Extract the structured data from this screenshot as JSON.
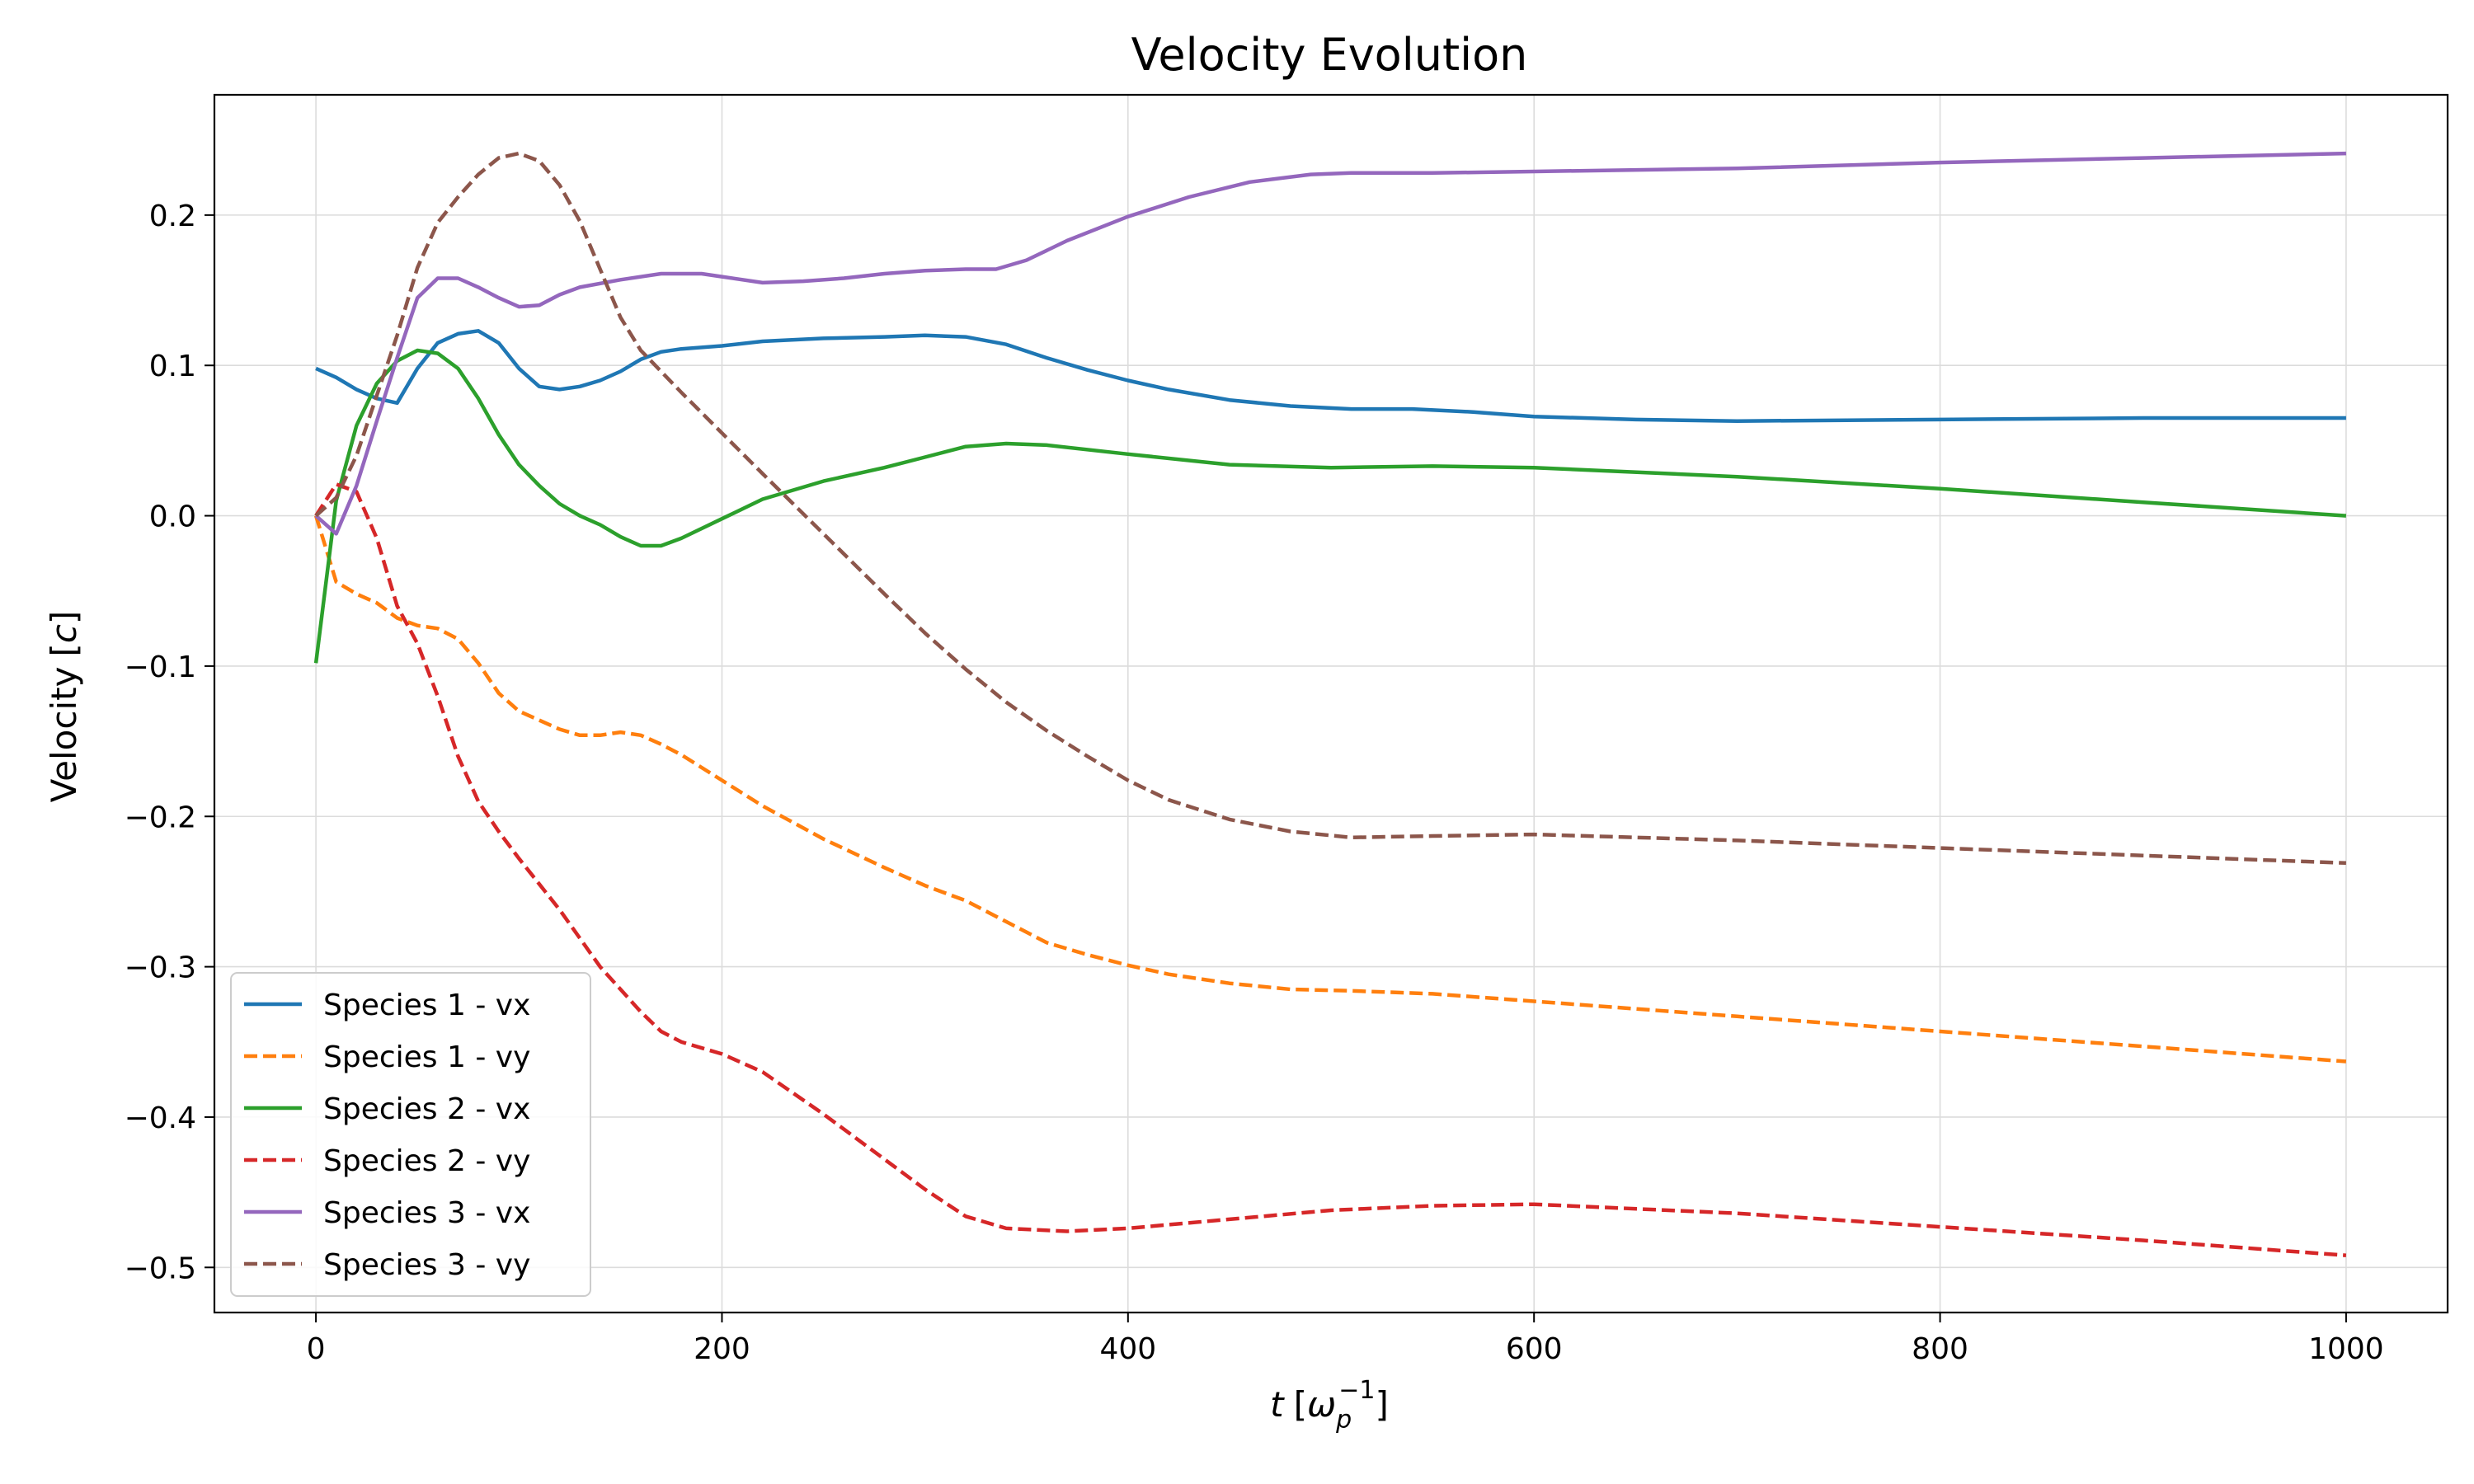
{
  "chart_data": {
    "type": "line",
    "title": "Velocity Evolution",
    "xlabel": {
      "main": "t",
      "bracket_open": "[",
      "omega": "ω",
      "sub": "p",
      "sup": "−1",
      "bracket_close": "]"
    },
    "ylabel": {
      "main": "Velocity",
      "bracket_open": "[",
      "unit": "c",
      "bracket_close": "]"
    },
    "xlim": [
      -50,
      1050
    ],
    "ylim": [
      -0.53,
      0.28
    ],
    "xticks": [
      0,
      200,
      400,
      600,
      800,
      1000
    ],
    "xtick_labels": [
      "0",
      "200",
      "400",
      "600",
      "800",
      "1000"
    ],
    "yticks": [
      -0.5,
      -0.4,
      -0.3,
      -0.2,
      -0.1,
      0.0,
      0.1,
      0.2
    ],
    "ytick_labels": [
      "−0.5",
      "−0.4",
      "−0.3",
      "−0.2",
      "−0.1",
      "0.0",
      "0.1",
      "0.2"
    ],
    "grid": true,
    "legend_position": "lower-left",
    "series": [
      {
        "name": "Species 1 - vx",
        "color": "#1f77b4",
        "dash": "solid",
        "points": [
          [
            0,
            0.098
          ],
          [
            10,
            0.092
          ],
          [
            20,
            0.084
          ],
          [
            30,
            0.078
          ],
          [
            40,
            0.075
          ],
          [
            50,
            0.098
          ],
          [
            60,
            0.115
          ],
          [
            70,
            0.121
          ],
          [
            80,
            0.123
          ],
          [
            90,
            0.115
          ],
          [
            100,
            0.098
          ],
          [
            110,
            0.086
          ],
          [
            120,
            0.084
          ],
          [
            130,
            0.086
          ],
          [
            140,
            0.09
          ],
          [
            150,
            0.096
          ],
          [
            160,
            0.104
          ],
          [
            170,
            0.109
          ],
          [
            180,
            0.111
          ],
          [
            200,
            0.113
          ],
          [
            220,
            0.116
          ],
          [
            250,
            0.118
          ],
          [
            280,
            0.119
          ],
          [
            300,
            0.12
          ],
          [
            320,
            0.119
          ],
          [
            340,
            0.114
          ],
          [
            360,
            0.105
          ],
          [
            380,
            0.097
          ],
          [
            400,
            0.09
          ],
          [
            420,
            0.084
          ],
          [
            450,
            0.077
          ],
          [
            480,
            0.073
          ],
          [
            510,
            0.071
          ],
          [
            540,
            0.071
          ],
          [
            570,
            0.069
          ],
          [
            600,
            0.066
          ],
          [
            650,
            0.064
          ],
          [
            700,
            0.063
          ],
          [
            800,
            0.064
          ],
          [
            900,
            0.065
          ],
          [
            1000,
            0.065
          ]
        ]
      },
      {
        "name": "Species 1 - vy",
        "color": "#ff7f0e",
        "dash": "dashed",
        "points": [
          [
            0,
            0.0
          ],
          [
            10,
            -0.044
          ],
          [
            20,
            -0.052
          ],
          [
            30,
            -0.058
          ],
          [
            40,
            -0.068
          ],
          [
            50,
            -0.073
          ],
          [
            60,
            -0.075
          ],
          [
            70,
            -0.082
          ],
          [
            80,
            -0.098
          ],
          [
            90,
            -0.118
          ],
          [
            100,
            -0.13
          ],
          [
            110,
            -0.136
          ],
          [
            120,
            -0.142
          ],
          [
            130,
            -0.146
          ],
          [
            140,
            -0.146
          ],
          [
            150,
            -0.144
          ],
          [
            160,
            -0.146
          ],
          [
            170,
            -0.152
          ],
          [
            180,
            -0.159
          ],
          [
            200,
            -0.176
          ],
          [
            220,
            -0.193
          ],
          [
            250,
            -0.215
          ],
          [
            280,
            -0.234
          ],
          [
            300,
            -0.246
          ],
          [
            320,
            -0.256
          ],
          [
            340,
            -0.27
          ],
          [
            360,
            -0.284
          ],
          [
            380,
            -0.292
          ],
          [
            400,
            -0.299
          ],
          [
            420,
            -0.305
          ],
          [
            450,
            -0.311
          ],
          [
            480,
            -0.315
          ],
          [
            510,
            -0.316
          ],
          [
            550,
            -0.318
          ],
          [
            600,
            -0.323
          ],
          [
            700,
            -0.333
          ],
          [
            800,
            -0.343
          ],
          [
            900,
            -0.353
          ],
          [
            1000,
            -0.363
          ]
        ]
      },
      {
        "name": "Species 2 - vx",
        "color": "#2ca02c",
        "dash": "solid",
        "points": [
          [
            0,
            -0.098
          ],
          [
            10,
            0.01
          ],
          [
            20,
            0.06
          ],
          [
            30,
            0.088
          ],
          [
            40,
            0.103
          ],
          [
            50,
            0.11
          ],
          [
            60,
            0.108
          ],
          [
            70,
            0.098
          ],
          [
            80,
            0.078
          ],
          [
            90,
            0.054
          ],
          [
            100,
            0.034
          ],
          [
            110,
            0.02
          ],
          [
            120,
            0.008
          ],
          [
            130,
            0.0
          ],
          [
            140,
            -0.006
          ],
          [
            150,
            -0.014
          ],
          [
            160,
            -0.02
          ],
          [
            170,
            -0.02
          ],
          [
            180,
            -0.015
          ],
          [
            200,
            -0.002
          ],
          [
            220,
            0.011
          ],
          [
            250,
            0.023
          ],
          [
            280,
            0.032
          ],
          [
            300,
            0.039
          ],
          [
            320,
            0.046
          ],
          [
            340,
            0.048
          ],
          [
            360,
            0.047
          ],
          [
            400,
            0.041
          ],
          [
            450,
            0.034
          ],
          [
            500,
            0.032
          ],
          [
            550,
            0.033
          ],
          [
            600,
            0.032
          ],
          [
            700,
            0.026
          ],
          [
            800,
            0.018
          ],
          [
            900,
            0.009
          ],
          [
            1000,
            0.0
          ]
        ]
      },
      {
        "name": "Species 2 - vy",
        "color": "#d62728",
        "dash": "dashed",
        "points": [
          [
            0,
            0.0
          ],
          [
            10,
            0.021
          ],
          [
            20,
            0.016
          ],
          [
            30,
            -0.015
          ],
          [
            40,
            -0.06
          ],
          [
            50,
            -0.085
          ],
          [
            60,
            -0.12
          ],
          [
            70,
            -0.16
          ],
          [
            80,
            -0.19
          ],
          [
            90,
            -0.21
          ],
          [
            100,
            -0.228
          ],
          [
            120,
            -0.262
          ],
          [
            140,
            -0.3
          ],
          [
            160,
            -0.33
          ],
          [
            170,
            -0.343
          ],
          [
            180,
            -0.35
          ],
          [
            200,
            -0.358
          ],
          [
            220,
            -0.37
          ],
          [
            250,
            -0.398
          ],
          [
            280,
            -0.428
          ],
          [
            300,
            -0.448
          ],
          [
            320,
            -0.466
          ],
          [
            340,
            -0.474
          ],
          [
            370,
            -0.476
          ],
          [
            400,
            -0.474
          ],
          [
            450,
            -0.468
          ],
          [
            500,
            -0.462
          ],
          [
            550,
            -0.459
          ],
          [
            600,
            -0.458
          ],
          [
            700,
            -0.464
          ],
          [
            800,
            -0.473
          ],
          [
            900,
            -0.482
          ],
          [
            1000,
            -0.492
          ]
        ]
      },
      {
        "name": "Species 3 - vx",
        "color": "#9467bd",
        "dash": "solid",
        "points": [
          [
            0,
            0.0
          ],
          [
            10,
            -0.012
          ],
          [
            20,
            0.02
          ],
          [
            30,
            0.063
          ],
          [
            40,
            0.105
          ],
          [
            50,
            0.145
          ],
          [
            60,
            0.158
          ],
          [
            70,
            0.158
          ],
          [
            80,
            0.152
          ],
          [
            90,
            0.145
          ],
          [
            100,
            0.139
          ],
          [
            110,
            0.14
          ],
          [
            120,
            0.147
          ],
          [
            130,
            0.152
          ],
          [
            150,
            0.157
          ],
          [
            170,
            0.161
          ],
          [
            190,
            0.161
          ],
          [
            200,
            0.159
          ],
          [
            220,
            0.155
          ],
          [
            240,
            0.156
          ],
          [
            260,
            0.158
          ],
          [
            280,
            0.161
          ],
          [
            300,
            0.163
          ],
          [
            320,
            0.164
          ],
          [
            335,
            0.164
          ],
          [
            350,
            0.17
          ],
          [
            370,
            0.183
          ],
          [
            400,
            0.199
          ],
          [
            430,
            0.212
          ],
          [
            460,
            0.222
          ],
          [
            490,
            0.227
          ],
          [
            510,
            0.228
          ],
          [
            550,
            0.228
          ],
          [
            600,
            0.229
          ],
          [
            700,
            0.231
          ],
          [
            800,
            0.235
          ],
          [
            900,
            0.238
          ],
          [
            1000,
            0.241
          ]
        ]
      },
      {
        "name": "Species 3 - vy",
        "color": "#8c564b",
        "dash": "dashed",
        "points": [
          [
            0,
            0.0
          ],
          [
            10,
            0.012
          ],
          [
            20,
            0.04
          ],
          [
            30,
            0.08
          ],
          [
            40,
            0.12
          ],
          [
            50,
            0.165
          ],
          [
            60,
            0.195
          ],
          [
            70,
            0.212
          ],
          [
            80,
            0.227
          ],
          [
            90,
            0.238
          ],
          [
            100,
            0.241
          ],
          [
            110,
            0.236
          ],
          [
            120,
            0.22
          ],
          [
            130,
            0.196
          ],
          [
            140,
            0.164
          ],
          [
            150,
            0.132
          ],
          [
            160,
            0.11
          ],
          [
            170,
            0.096
          ],
          [
            180,
            0.082
          ],
          [
            200,
            0.055
          ],
          [
            220,
            0.028
          ],
          [
            250,
            -0.012
          ],
          [
            280,
            -0.052
          ],
          [
            300,
            -0.078
          ],
          [
            320,
            -0.102
          ],
          [
            340,
            -0.124
          ],
          [
            360,
            -0.143
          ],
          [
            380,
            -0.16
          ],
          [
            400,
            -0.176
          ],
          [
            420,
            -0.189
          ],
          [
            450,
            -0.202
          ],
          [
            480,
            -0.21
          ],
          [
            510,
            -0.214
          ],
          [
            550,
            -0.213
          ],
          [
            600,
            -0.212
          ],
          [
            700,
            -0.216
          ],
          [
            800,
            -0.221
          ],
          [
            900,
            -0.226
          ],
          [
            1000,
            -0.231
          ]
        ]
      }
    ]
  }
}
